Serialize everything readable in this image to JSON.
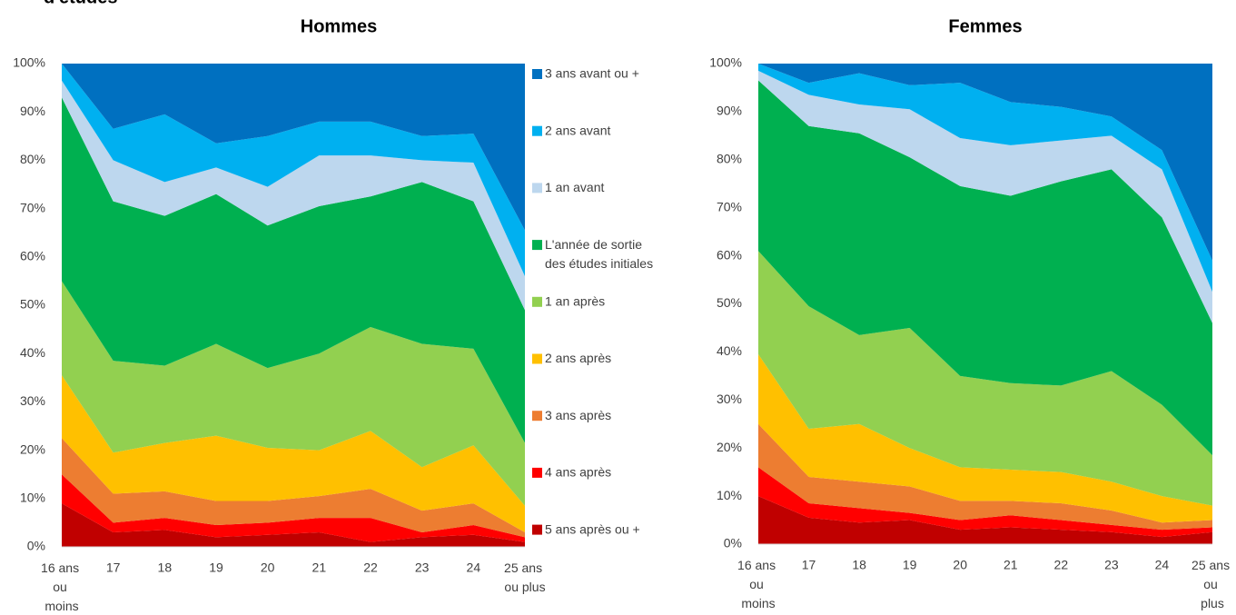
{
  "header": {
    "title": "d'études"
  },
  "chart_data": [
    {
      "type": "stacked-area",
      "title": "Hommes",
      "legend": "right",
      "categories": [
        "16 ans ou moins",
        "17",
        "18",
        "19",
        "20",
        "21",
        "22",
        "23",
        "24",
        "25 ans ou plus"
      ],
      "ylim": [
        0,
        100
      ],
      "yticks": [
        {
          "value": 0,
          "label": "0%"
        },
        {
          "value": 10,
          "label": "10%"
        },
        {
          "value": 20,
          "label": "20%"
        },
        {
          "value": 30,
          "label": "30%"
        },
        {
          "value": 40,
          "label": "40%"
        },
        {
          "value": 50,
          "label": "50%"
        },
        {
          "value": 60,
          "label": "60%"
        },
        {
          "value": 70,
          "label": "70%"
        },
        {
          "value": 80,
          "label": "80%"
        },
        {
          "value": 90,
          "label": "90%"
        },
        {
          "value": 100,
          "label": "100%"
        }
      ],
      "series": [
        {
          "name": "5 ans après ou +",
          "color": "#c00000",
          "values": [
            9,
            3,
            3.5,
            2,
            2.5,
            3,
            1,
            2,
            2.5,
            1
          ]
        },
        {
          "name": "4 ans après",
          "color": "#ff0000",
          "values": [
            6,
            2,
            2.5,
            2.5,
            2.5,
            3,
            5,
            1,
            2,
            1
          ]
        },
        {
          "name": "3 ans après",
          "color": "#ed7d31",
          "values": [
            7.5,
            6,
            5.5,
            5,
            4.5,
            4.5,
            6,
            4.5,
            4.5,
            1
          ]
        },
        {
          "name": "2 ans après",
          "color": "#ffc000",
          "values": [
            13,
            8.5,
            10,
            13.5,
            11,
            9.5,
            12,
            9,
            12,
            5.5
          ]
        },
        {
          "name": "1 an après",
          "color": "#92d050",
          "values": [
            19.5,
            19,
            16,
            19,
            16.5,
            20,
            21.5,
            25.5,
            20,
            13
          ]
        },
        {
          "name": "L'année de sortie des études initiales",
          "color": "#00b050",
          "values": [
            38,
            33,
            31,
            31,
            29.5,
            30.5,
            27,
            33.5,
            30.5,
            27.5
          ]
        },
        {
          "name": "1 an avant",
          "color": "#bdd7ee",
          "values": [
            3.5,
            8.5,
            7,
            5.5,
            8,
            10.5,
            8.5,
            4.5,
            8,
            7
          ]
        },
        {
          "name": "2 ans avant",
          "color": "#00b0f0",
          "values": [
            3.5,
            6.5,
            14,
            5,
            10.5,
            7,
            7,
            5,
            6,
            9.5
          ]
        },
        {
          "name": "3 ans avant ou +",
          "color": "#0070c0",
          "values": [
            0,
            13.5,
            10.5,
            16.5,
            15,
            12,
            12,
            15,
            14.5,
            34.5
          ]
        }
      ]
    },
    {
      "type": "stacked-area",
      "title": "Femmes",
      "categories": [
        "16 ans ou moins",
        "17",
        "18",
        "19",
        "20",
        "21",
        "22",
        "23",
        "24",
        "25 ans ou plus"
      ],
      "ylim": [
        0,
        100
      ],
      "yticks": [
        {
          "value": 0,
          "label": "0%"
        },
        {
          "value": 10,
          "label": "10%"
        },
        {
          "value": 20,
          "label": "20%"
        },
        {
          "value": 30,
          "label": "30%"
        },
        {
          "value": 40,
          "label": "40%"
        },
        {
          "value": 50,
          "label": "50%"
        },
        {
          "value": 60,
          "label": "60%"
        },
        {
          "value": 70,
          "label": "70%"
        },
        {
          "value": 80,
          "label": "80%"
        },
        {
          "value": 90,
          "label": "90%"
        },
        {
          "value": 100,
          "label": "100%"
        }
      ],
      "series": [
        {
          "color": "#c00000",
          "values": [
            10,
            5.5,
            4.5,
            5,
            3,
            3.5,
            3,
            2.5,
            1.5,
            2.5
          ]
        },
        {
          "color": "#ff0000",
          "values": [
            6,
            3,
            3,
            1.5,
            2,
            2.5,
            2,
            1.5,
            1.5,
            1
          ]
        },
        {
          "color": "#ed7d31",
          "values": [
            9,
            5.5,
            5.5,
            5.5,
            4,
            3,
            3.5,
            3,
            1.5,
            1.5
          ]
        },
        {
          "color": "#ffc000",
          "values": [
            14.5,
            10,
            12,
            8,
            7,
            6.5,
            6.5,
            6,
            5.5,
            3
          ]
        },
        {
          "color": "#92d050",
          "values": [
            21.5,
            25.5,
            18.5,
            25,
            19,
            18,
            18,
            23,
            19,
            10.5
          ]
        },
        {
          "color": "#00b050",
          "values": [
            35.5,
            37.5,
            42,
            35.5,
            39.5,
            39,
            42.5,
            42,
            39,
            27.5
          ]
        },
        {
          "color": "#bdd7ee",
          "values": [
            2,
            6.5,
            6,
            10,
            10,
            10.5,
            8.5,
            7,
            10,
            6.5
          ]
        },
        {
          "color": "#00b0f0",
          "values": [
            1.5,
            2.5,
            6.5,
            5,
            11.5,
            9,
            7,
            4,
            4,
            6.5
          ]
        },
        {
          "color": "#0070c0",
          "values": [
            0,
            4,
            2,
            4.5,
            4,
            8,
            9,
            11,
            18,
            41
          ]
        }
      ]
    }
  ]
}
